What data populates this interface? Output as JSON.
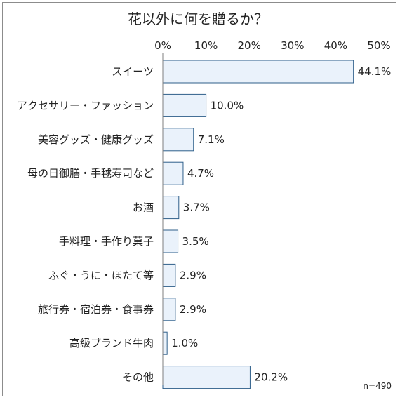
{
  "chart_data": {
    "type": "bar",
    "orientation": "horizontal",
    "title": "花以外に何を贈るか？",
    "note": "n=490",
    "xlim": [
      0,
      50
    ],
    "ticks": [
      0,
      10,
      20,
      30,
      40,
      50
    ],
    "tick_labels": [
      "0%",
      "10%",
      "20%",
      "30%",
      "40%",
      "50%"
    ],
    "categories": [
      "スイーツ",
      "アクセサリー・ファッション",
      "美容グッズ・健康グッズ",
      "母の日御膳・手毬寿司など",
      "お酒",
      "手料理・手作り菓子",
      "ふぐ・うに・ほたて等",
      "旅行券・宿泊券・食事券",
      "高級ブランド牛肉",
      "その他"
    ],
    "values": [
      44.1,
      10.0,
      7.1,
      4.7,
      3.7,
      3.5,
      2.9,
      2.9,
      1.0,
      20.2
    ],
    "value_labels": [
      "44.1%",
      "10.0%",
      "7.1%",
      "4.7%",
      "3.7%",
      "3.5%",
      "2.9%",
      "2.9%",
      "1.0%",
      "20.2%"
    ],
    "colors": {
      "bar_fill": "#eaf2fb",
      "bar_stroke": "#2f5f8a",
      "axis": "#7f7f7f"
    },
    "grid": false,
    "legend": "none"
  }
}
